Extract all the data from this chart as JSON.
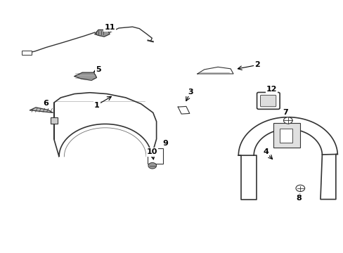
{
  "bg_color": "#ffffff",
  "line_color": "#333333",
  "label_fontsize": 8,
  "figsize": [
    4.89,
    3.6
  ],
  "dpi": 100,
  "labels_info": [
    [
      1,
      0.28,
      0.585,
      0.33,
      0.625
    ],
    [
      2,
      0.75,
      0.745,
      0.685,
      0.728
    ],
    [
      3,
      0.555,
      0.638,
      0.538,
      0.592
    ],
    [
      4,
      0.775,
      0.398,
      0.8,
      0.362
    ],
    [
      5,
      0.285,
      0.728,
      0.265,
      0.712
    ],
    [
      6,
      0.132,
      0.592,
      0.138,
      0.572
    ],
    [
      7,
      0.832,
      0.555,
      0.84,
      0.538
    ],
    [
      8,
      0.872,
      0.215,
      0.877,
      0.242
    ],
    [
      9,
      0.482,
      0.432,
      0.468,
      0.412
    ],
    [
      10,
      0.442,
      0.398,
      0.448,
      0.358
    ],
    [
      11,
      0.318,
      0.895,
      0.308,
      0.882
    ],
    [
      12,
      0.792,
      0.648,
      0.788,
      0.63
    ]
  ]
}
